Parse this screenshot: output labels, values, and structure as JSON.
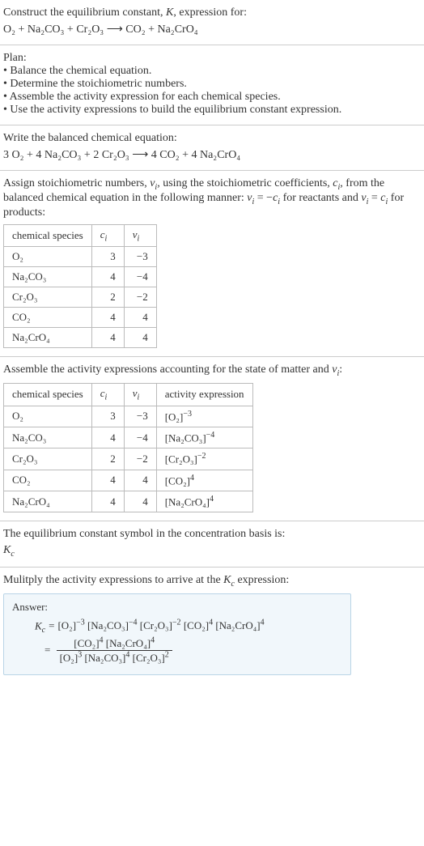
{
  "intro": {
    "line1": "Construct the equilibrium constant, K, expression for:",
    "equation": "O₂ + Na₂CO₃ + Cr₂O₃ ⟶ CO₂ + Na₂CrO₄"
  },
  "plan": {
    "heading": "Plan:",
    "items": [
      "• Balance the chemical equation.",
      "• Determine the stoichiometric numbers.",
      "• Assemble the activity expression for each chemical species.",
      "• Use the activity expressions to build the equilibrium constant expression."
    ]
  },
  "balanced": {
    "heading": "Write the balanced chemical equation:",
    "equation": "3 O₂ + 4 Na₂CO₃ + 2 Cr₂O₃ ⟶ 4 CO₂ + 4 Na₂CrO₄"
  },
  "assign": {
    "text_before": "Assign stoichiometric numbers, νᵢ, using the stoichiometric coefficients, cᵢ, from the balanced chemical equation in the following manner: νᵢ = −cᵢ for reactants and νᵢ = cᵢ for products:",
    "headers": {
      "sp": "chemical species",
      "ci": "cᵢ",
      "vi": "νᵢ"
    },
    "rows": [
      {
        "sp": "O₂",
        "ci": "3",
        "vi": "−3"
      },
      {
        "sp": "Na₂CO₃",
        "ci": "4",
        "vi": "−4"
      },
      {
        "sp": "Cr₂O₃",
        "ci": "2",
        "vi": "−2"
      },
      {
        "sp": "CO₂",
        "ci": "4",
        "vi": "4"
      },
      {
        "sp": "Na₂CrO₄",
        "ci": "4",
        "vi": "4"
      }
    ]
  },
  "activity": {
    "heading": "Assemble the activity expressions accounting for the state of matter and νᵢ:",
    "headers": {
      "sp": "chemical species",
      "ci": "cᵢ",
      "vi": "νᵢ",
      "ax": "activity expression"
    },
    "rows": [
      {
        "sp": "O₂",
        "ci": "3",
        "vi": "−3",
        "base": "[O₂]",
        "exp": "−3"
      },
      {
        "sp": "Na₂CO₃",
        "ci": "4",
        "vi": "−4",
        "base": "[Na₂CO₃]",
        "exp": "−4"
      },
      {
        "sp": "Cr₂O₃",
        "ci": "2",
        "vi": "−2",
        "base": "[Cr₂O₃]",
        "exp": "−2"
      },
      {
        "sp": "CO₂",
        "ci": "4",
        "vi": "4",
        "base": "[CO₂]",
        "exp": "4"
      },
      {
        "sp": "Na₂CrO₄",
        "ci": "4",
        "vi": "4",
        "base": "[Na₂CrO₄]",
        "exp": "4"
      }
    ]
  },
  "symbol": {
    "line1": "The equilibrium constant symbol in the concentration basis is:",
    "kc": "K_c"
  },
  "multiply": {
    "heading": "Mulitply the activity expressions to arrive at the K_c expression:"
  },
  "answer": {
    "title": "Answer:",
    "lhs": "K_c",
    "product_terms": [
      {
        "base": "[O₂]",
        "exp": "−3"
      },
      {
        "base": "[Na₂CO₃]",
        "exp": "−4"
      },
      {
        "base": "[Cr₂O₃]",
        "exp": "−2"
      },
      {
        "base": "[CO₂]",
        "exp": "4"
      },
      {
        "base": "[Na₂CrO₄]",
        "exp": "4"
      }
    ],
    "frac": {
      "num": [
        {
          "base": "[CO₂]",
          "exp": "4"
        },
        {
          "base": "[Na₂CrO₄]",
          "exp": "4"
        }
      ],
      "den": [
        {
          "base": "[O₂]",
          "exp": "3"
        },
        {
          "base": "[Na₂CO₃]",
          "exp": "4"
        },
        {
          "base": "[Cr₂O₃]",
          "exp": "2"
        }
      ]
    }
  }
}
